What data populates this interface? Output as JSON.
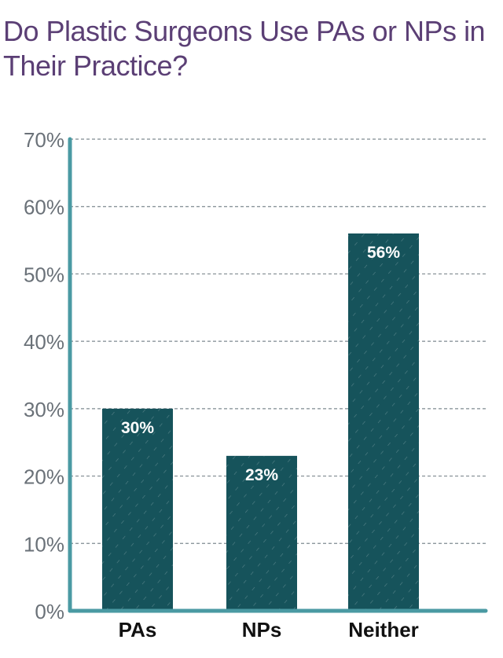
{
  "title": "Do Plastic Surgeons Use PAs or NPs in Their Practice?",
  "colors": {
    "title": "#5b3f75",
    "bar": "#16535b",
    "axis": "#4a9aa3",
    "grid": "#7f8a90",
    "tick_text": "#6a7178",
    "category_text": "#111111",
    "data_label_text": "#ffffff"
  },
  "chart_data": {
    "type": "bar",
    "categories": [
      "PAs",
      "NPs",
      "Neither"
    ],
    "values": [
      30,
      23,
      56
    ],
    "data_labels": [
      "30%",
      "23%",
      "56%"
    ],
    "title": "Do Plastic Surgeons Use PAs or NPs in Their Practice?",
    "xlabel": "",
    "ylabel": "",
    "ylim": [
      0,
      70
    ],
    "yticks": [
      0,
      10,
      20,
      30,
      40,
      50,
      60,
      70
    ],
    "ytick_labels": [
      "0%",
      "10%",
      "20%",
      "30%",
      "40%",
      "50%",
      "60%",
      "70%"
    ],
    "grid": true,
    "grid_style": "dashed",
    "legend": "none"
  }
}
